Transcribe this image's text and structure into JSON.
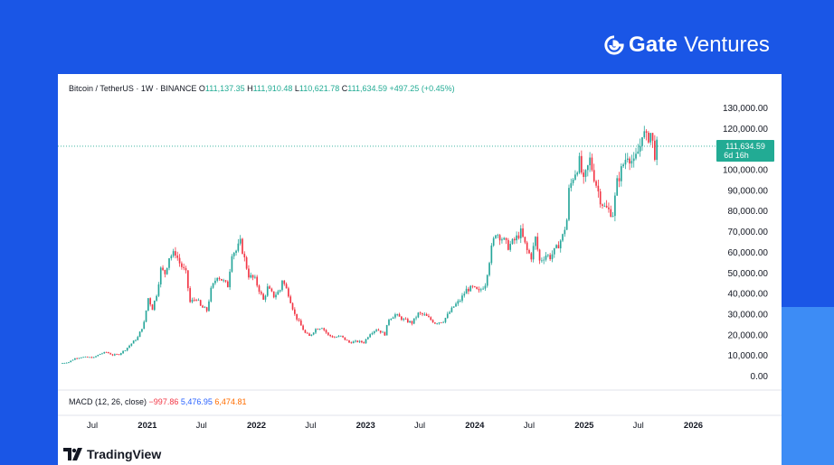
{
  "brand": {
    "name": "Gate",
    "suffix": "Ventures",
    "logo_icon": "gate-logo-icon"
  },
  "header": {
    "symbol": "Bitcoin / TetherUS · 1W · BINANCE",
    "open_label": "O",
    "open": "111,137.35",
    "high_label": "H",
    "high": "111,910.48",
    "low_label": "L",
    "low": "110,621.78",
    "close_label": "C",
    "close": "111,634.59",
    "change": "+497.25 (+0.45%)"
  },
  "price_tag": {
    "price": "111,634.59",
    "countdown": "6d 16h"
  },
  "macd": {
    "label": "MACD (12, 26, close)",
    "v1": "−997.86",
    "v2": "5,476.95",
    "v3": "6,474.81"
  },
  "footer": {
    "logo_icon": "tradingview-logo-icon",
    "name": "TradingView"
  },
  "colors": {
    "up": "#26a69a",
    "down": "#f23645",
    "background": "#1a56e6"
  },
  "chart_data": {
    "type": "candlestick",
    "interval": "1W",
    "y_ticks": [
      "0.00",
      "10,000.00",
      "20,000.00",
      "30,000.00",
      "40,000.00",
      "50,000.00",
      "60,000.00",
      "70,000.00",
      "80,000.00",
      "90,000.00",
      "100,000.00",
      "110,000.00",
      "120,000.00",
      "130,000.00"
    ],
    "ylim": [
      0,
      130000
    ],
    "x_ticks": [
      "Jul",
      "2021",
      "Jul",
      "2022",
      "Jul",
      "2023",
      "Jul",
      "2024",
      "Jul",
      "2025",
      "Jul",
      "2026"
    ],
    "x_tick_dates": [
      "2020-07-01",
      "2021-01-01",
      "2021-07-01",
      "2022-01-01",
      "2022-07-01",
      "2023-01-01",
      "2023-07-01",
      "2024-01-01",
      "2024-07-01",
      "2025-01-01",
      "2025-07-01",
      "2026-01-01"
    ],
    "xlim": [
      "2020-03-20",
      "2026-03-01"
    ],
    "last_price": 111634.59,
    "series": [
      {
        "values": [
          [
            "2020-03-23",
            6500
          ],
          [
            "2020-04-13",
            7000
          ],
          [
            "2020-05-04",
            8800
          ],
          [
            "2020-05-25",
            9400
          ],
          [
            "2020-06-15",
            9300
          ],
          [
            "2020-07-06",
            9200
          ],
          [
            "2020-07-27",
            11000
          ],
          [
            "2020-08-17",
            11800
          ],
          [
            "2020-09-07",
            10400
          ],
          [
            "2020-09-28",
            10800
          ],
          [
            "2020-10-19",
            13000
          ],
          [
            "2020-11-09",
            16000
          ],
          [
            "2020-11-30",
            19000
          ],
          [
            "2020-12-21",
            26000
          ],
          [
            "2021-01-04",
            38000
          ],
          [
            "2021-01-18",
            33000
          ],
          [
            "2021-02-01",
            40000
          ],
          [
            "2021-02-15",
            52000
          ],
          [
            "2021-03-01",
            50000
          ],
          [
            "2021-03-15",
            58000
          ],
          [
            "2021-04-05",
            60000
          ],
          [
            "2021-04-19",
            55000
          ],
          [
            "2021-05-10",
            50000
          ],
          [
            "2021-05-24",
            36000
          ],
          [
            "2021-06-14",
            38000
          ],
          [
            "2021-06-28",
            34000
          ],
          [
            "2021-07-19",
            32000
          ],
          [
            "2021-08-02",
            42000
          ],
          [
            "2021-08-23",
            49000
          ],
          [
            "2021-09-06",
            47000
          ],
          [
            "2021-09-27",
            44000
          ],
          [
            "2021-10-11",
            60000
          ],
          [
            "2021-10-25",
            61000
          ],
          [
            "2021-11-08",
            65000
          ],
          [
            "2021-11-22",
            57000
          ],
          [
            "2021-12-06",
            49000
          ],
          [
            "2021-12-27",
            47000
          ],
          [
            "2022-01-10",
            42000
          ],
          [
            "2022-01-24",
            37000
          ],
          [
            "2022-02-07",
            43000
          ],
          [
            "2022-02-28",
            39000
          ],
          [
            "2022-03-21",
            42000
          ],
          [
            "2022-03-28",
            47000
          ],
          [
            "2022-04-18",
            40000
          ],
          [
            "2022-05-09",
            30000
          ],
          [
            "2022-06-13",
            21000
          ],
          [
            "2022-06-27",
            19500
          ],
          [
            "2022-07-18",
            23000
          ],
          [
            "2022-08-08",
            24000
          ],
          [
            "2022-08-29",
            20000
          ],
          [
            "2022-09-19",
            19000
          ],
          [
            "2022-10-10",
            19500
          ],
          [
            "2022-11-07",
            16500
          ],
          [
            "2022-12-05",
            17000
          ],
          [
            "2022-12-26",
            16500
          ],
          [
            "2023-01-16",
            21000
          ],
          [
            "2023-02-06",
            23000
          ],
          [
            "2023-03-06",
            20500
          ],
          [
            "2023-03-20",
            28000
          ],
          [
            "2023-04-10",
            30000
          ],
          [
            "2023-05-08",
            27500
          ],
          [
            "2023-06-05",
            26000
          ],
          [
            "2023-06-26",
            30500
          ],
          [
            "2023-07-17",
            29800
          ],
          [
            "2023-08-21",
            26000
          ],
          [
            "2023-09-18",
            27000
          ],
          [
            "2023-10-23",
            34000
          ],
          [
            "2023-11-13",
            37000
          ],
          [
            "2023-12-04",
            42000
          ],
          [
            "2023-12-25",
            43000
          ],
          [
            "2024-01-15",
            41000
          ],
          [
            "2024-02-05",
            45000
          ],
          [
            "2024-02-26",
            62000
          ],
          [
            "2024-03-11",
            70000
          ],
          [
            "2024-04-01",
            67000
          ],
          [
            "2024-04-22",
            63000
          ],
          [
            "2024-05-13",
            66000
          ],
          [
            "2024-06-03",
            70000
          ],
          [
            "2024-06-24",
            61000
          ],
          [
            "2024-07-08",
            58000
          ],
          [
            "2024-07-22",
            67000
          ],
          [
            "2024-08-05",
            56000
          ],
          [
            "2024-08-26",
            59000
          ],
          [
            "2024-09-09",
            58000
          ],
          [
            "2024-09-30",
            62000
          ],
          [
            "2024-10-21",
            68000
          ],
          [
            "2024-11-04",
            76000
          ],
          [
            "2024-11-11",
            90000
          ],
          [
            "2024-11-25",
            97000
          ],
          [
            "2024-12-16",
            104000
          ],
          [
            "2024-12-30",
            94000
          ],
          [
            "2025-01-20",
            105000
          ],
          [
            "2025-02-03",
            97000
          ],
          [
            "2025-02-24",
            86000
          ],
          [
            "2025-03-10",
            82000
          ],
          [
            "2025-04-07",
            79000
          ],
          [
            "2025-04-21",
            94000
          ],
          [
            "2025-05-12",
            103000
          ],
          [
            "2025-05-26",
            108000
          ],
          [
            "2025-06-16",
            103000
          ],
          [
            "2025-07-07",
            112000
          ],
          [
            "2025-07-14",
            119000
          ],
          [
            "2025-07-28",
            115000
          ],
          [
            "2025-08-11",
            118000
          ],
          [
            "2025-08-18",
            113000
          ],
          [
            "2025-08-25",
            108000
          ],
          [
            "2025-09-01",
            111634.59
          ]
        ]
      }
    ]
  }
}
